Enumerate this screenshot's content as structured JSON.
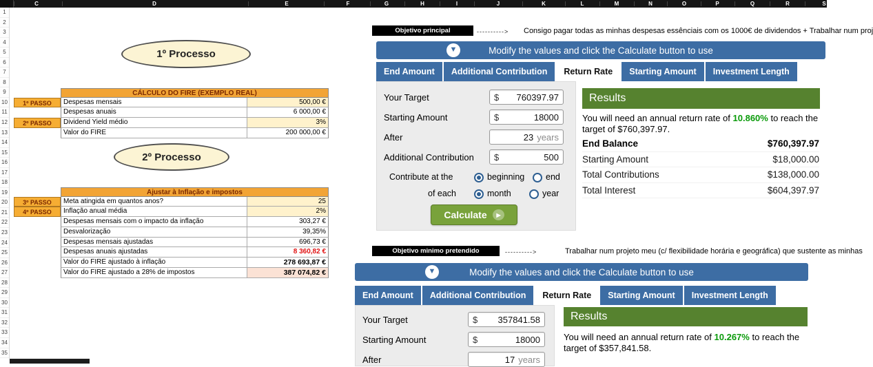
{
  "colors": {
    "accent_blue": "#3d6da4",
    "accent_green": "#56822f",
    "rate_green": "#0b9b0b",
    "button_green": "#79a23b",
    "table_orange": "#f2a435",
    "step_gold": "#f6ad33",
    "input_cream": "#fff2cc",
    "highlight_peach": "#fbe2d5",
    "negative_red": "#e01212"
  },
  "spreadsheet": {
    "columns": [
      "C",
      "D",
      "E",
      "F",
      "G",
      "H",
      "I",
      "J",
      "K",
      "L",
      "M",
      "N",
      "O",
      "P",
      "Q",
      "R",
      "S"
    ],
    "rows": [
      "1",
      "2",
      "3",
      "4",
      "5",
      "6",
      "7",
      "8",
      "9",
      "10",
      "11",
      "12",
      "13",
      "14",
      "15",
      "16",
      "17",
      "18",
      "19",
      "20",
      "21",
      "22",
      "23",
      "24",
      "25",
      "26",
      "27",
      "28",
      "29",
      "30",
      "31",
      "32",
      "33",
      "34",
      "35"
    ]
  },
  "process1": {
    "label": "1º Processo"
  },
  "process2": {
    "label": "2º Processo"
  },
  "fire_table": {
    "title": "CÁLCULO DO FIRE (EXEMPLO REAL)",
    "rows": [
      {
        "step": "1º PASSO",
        "label": "Despesas mensais",
        "value": "500,00 €",
        "input": true
      },
      {
        "step": "",
        "label": "Despesas anuais",
        "value": "6 000,00 €"
      },
      {
        "step": "2º PASSO",
        "label": "Dividend Yield médio",
        "value": "3%",
        "input": true
      },
      {
        "step": "",
        "label": "Valor do FIRE",
        "value": "200 000,00 €"
      }
    ]
  },
  "inflation_table": {
    "title": "Ajustar à Inflação e impostos",
    "rows": [
      {
        "step": "3º PASSO",
        "label": "Meta atingida em quantos anos?",
        "value": "25",
        "input": true
      },
      {
        "step": "4º PASSO",
        "label": "Inflação anual média",
        "value": "2%",
        "input": true
      },
      {
        "step": "",
        "label": "Despesas mensais com o impacto da inflação",
        "value": "303,27 €"
      },
      {
        "step": "",
        "label": "Desvalorização",
        "value": "39,35%"
      },
      {
        "step": "",
        "label": "Despesas mensais ajustadas",
        "value": "696,73 €"
      },
      {
        "step": "",
        "label": "Despesas anuais ajustadas",
        "value": "8 360,82 €",
        "red": true
      },
      {
        "step": "",
        "label": "Valor do FIRE ajustado à inflação",
        "value": "278 693,87 €",
        "bold": true
      },
      {
        "step": "",
        "label": "Valor do FIRE ajustado a 28% de impostos",
        "value": "387 074,82 €",
        "bold": true,
        "highlight": true
      }
    ]
  },
  "objective1": {
    "badge": "Objetivo principal",
    "arrow": "---------->",
    "text": "Consigo pagar todas as minhas despesas essênciais com os 1000€ de dividendos + Trabalhar num proj"
  },
  "objective2": {
    "badge": "Objetivo minimo pretendido",
    "arrow": "---------->",
    "text": "Trabalhar num projeto meu (c/ flexibilidade horária e geográfica) que sustente as minhas"
  },
  "calc1": {
    "header": "Modify the values and click the Calculate button to use",
    "tabs": [
      {
        "label": "End Amount"
      },
      {
        "label": "Additional Contribution"
      },
      {
        "label": "Return Rate",
        "active": true
      },
      {
        "label": "Starting Amount"
      },
      {
        "label": "Investment Length"
      }
    ],
    "fields": {
      "your_target_label": "Your Target",
      "your_target_prefix": "$",
      "your_target_value": "760397.97",
      "starting_amount_label": "Starting Amount",
      "starting_amount_prefix": "$",
      "starting_amount_value": "18000",
      "after_label": "After",
      "after_value": "23",
      "after_suffix": "years",
      "additional_label": "Additional Contribution",
      "additional_prefix": "$",
      "additional_value": "500",
      "contribute_label": "Contribute at the",
      "beginning_label": "beginning",
      "end_label": "end",
      "each_label": "of each",
      "month_label": "month",
      "year_label": "year",
      "calculate_label": "Calculate"
    },
    "results": {
      "title": "Results",
      "message_before": "You will need an annual return rate of ",
      "rate": "10.860%",
      "message_after": " to reach the target of $760,397.97.",
      "rows": [
        {
          "label": "End Balance",
          "value": "$760,397.97",
          "bold": true
        },
        {
          "label": "Starting Amount",
          "value": "$18,000.00"
        },
        {
          "label": "Total Contributions",
          "value": "$138,000.00"
        },
        {
          "label": "Total Interest",
          "value": "$604,397.97"
        }
      ]
    }
  },
  "calc2": {
    "header": "Modify the values and click the Calculate button to use",
    "tabs": [
      {
        "label": "End Amount"
      },
      {
        "label": "Additional Contribution"
      },
      {
        "label": "Return Rate",
        "active": true
      },
      {
        "label": "Starting Amount"
      },
      {
        "label": "Investment Length"
      }
    ],
    "fields": {
      "your_target_label": "Your Target",
      "your_target_prefix": "$",
      "your_target_value": "357841.58",
      "starting_amount_label": "Starting Amount",
      "starting_amount_prefix": "$",
      "starting_amount_value": "18000",
      "after_label": "After",
      "after_value": "17",
      "after_suffix": "years"
    },
    "results": {
      "title": "Results",
      "message_before": "You will need an annual return rate of ",
      "rate": "10.267%",
      "message_after": " to reach the target of $357,841.58."
    }
  }
}
